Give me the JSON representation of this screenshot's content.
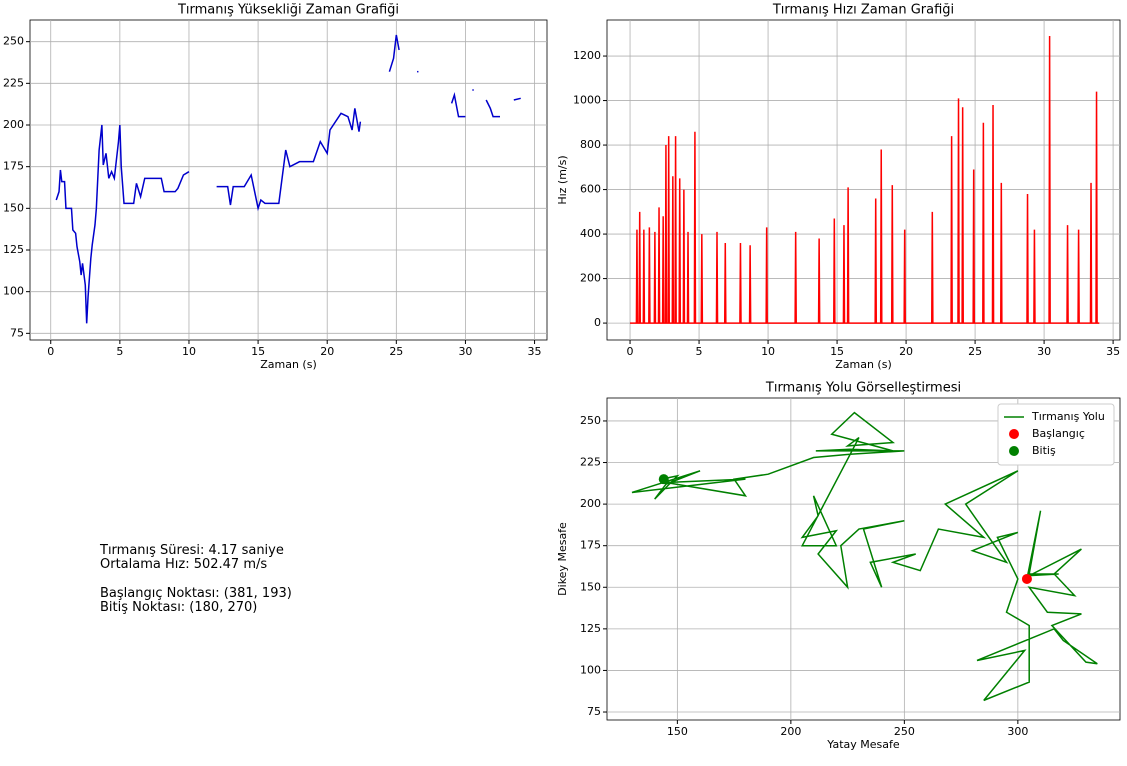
{
  "chart_data": [
    {
      "type": "line",
      "title": "Tırmanış Yüksekliği Zaman Grafiği",
      "x_label": "Zaman (s)",
      "color": "#0000cc",
      "grid": true,
      "xlim": [
        -1.5,
        35.9
      ],
      "ylim": [
        71,
        263
      ],
      "xticks": [
        0,
        5,
        10,
        15,
        20,
        25,
        30,
        35
      ],
      "yticks": [
        75,
        100,
        125,
        150,
        175,
        200,
        225,
        250
      ],
      "x": [
        0.4,
        0.6,
        0.7,
        0.8,
        1.0,
        1.1,
        1.5,
        1.6,
        1.8,
        1.9,
        2.1,
        2.2,
        2.3,
        2.5,
        2.6,
        2.7,
        2.9,
        3.0,
        3.2,
        3.3,
        3.5,
        3.7,
        3.8,
        4.0,
        4.2,
        4.4,
        4.6,
        4.9,
        5.0,
        5.1,
        5.3,
        6.0,
        6.2,
        6.5,
        6.8,
        8.0,
        8.2,
        9.0,
        9.2,
        9.6,
        10.0,
        11.0,
        12.0,
        12.8,
        13.0,
        13.2,
        14.0,
        14.5,
        15.0,
        15.2,
        15.5,
        16.5,
        17.0,
        17.3,
        18.0,
        19.0,
        19.5,
        20.0,
        20.2,
        21.0,
        21.5,
        21.8,
        22.0,
        22.3,
        22.4,
        23.5,
        24.5,
        24.8,
        25.0,
        25.2,
        25.9,
        26.5,
        26.6,
        27.8,
        29.0,
        29.2,
        29.5,
        30.0,
        30.2,
        30.5,
        30.6,
        31.0,
        31.5,
        31.8,
        32.0,
        32.5,
        33.0,
        33.5,
        34.0
      ],
      "values": [
        155,
        160,
        173,
        166,
        166,
        150,
        150,
        137,
        135,
        127,
        118,
        110,
        117,
        104,
        81,
        97,
        120,
        128,
        140,
        150,
        185,
        200,
        176,
        183,
        168,
        172,
        168,
        190,
        200,
        175,
        153,
        153,
        165,
        157,
        168,
        168,
        160,
        160,
        162,
        170,
        172,
        null,
        163,
        163,
        152,
        163,
        163,
        170,
        150,
        155,
        153,
        153,
        185,
        175,
        178,
        178,
        190,
        183,
        197,
        207,
        205,
        197,
        210,
        196,
        202,
        null,
        232,
        240,
        254,
        245,
        null,
        232,
        232,
        null,
        213,
        218,
        205,
        205,
        null,
        221,
        221,
        null,
        215,
        210,
        205,
        205,
        null,
        215,
        216
      ]
    },
    {
      "type": "line",
      "title": "Tırmanış Hızı Zaman Grafiği",
      "x_label": "Zaman (s)",
      "y_label": "Hız (m/s)",
      "color": "#ff0000",
      "grid": true,
      "xlim": [
        -1.67,
        35.5
      ],
      "ylim": [
        -76,
        1362
      ],
      "xticks": [
        0,
        5,
        10,
        15,
        20,
        25,
        30,
        35
      ],
      "yticks": [
        0,
        200,
        400,
        600,
        800,
        1000,
        1200
      ],
      "x": [
        0,
        0.46,
        0.5,
        0.54,
        0.66,
        0.7,
        0.74,
        0.96,
        1.0,
        1.04,
        1.36,
        1.4,
        1.44,
        1.76,
        1.8,
        1.84,
        2.06,
        2.1,
        2.14,
        2.36,
        2.4,
        2.44,
        2.56,
        2.6,
        2.64,
        2.76,
        2.8,
        2.84,
        3.06,
        3.1,
        3.14,
        3.26,
        3.3,
        3.34,
        3.56,
        3.6,
        3.64,
        3.86,
        3.9,
        3.94,
        4.16,
        4.2,
        4.24,
        4.66,
        4.7,
        4.74,
        5.16,
        5.2,
        5.24,
        6.26,
        6.3,
        6.34,
        6.86,
        6.9,
        6.94,
        7.96,
        8.0,
        8.04,
        8.66,
        8.7,
        8.74,
        9.86,
        9.9,
        9.94,
        11.96,
        12.0,
        12.04,
        13.66,
        13.7,
        13.74,
        14.76,
        14.8,
        14.84,
        15.46,
        15.5,
        15.54,
        15.76,
        15.8,
        15.84,
        17.76,
        17.8,
        17.84,
        18.16,
        18.2,
        18.24,
        18.96,
        19.0,
        19.04,
        19.86,
        19.9,
        19.94,
        21.86,
        21.9,
        21.94,
        23.26,
        23.3,
        23.34,
        23.76,
        23.8,
        23.84,
        24.06,
        24.1,
        24.14,
        24.86,
        24.9,
        24.94,
        25.56,
        25.6,
        25.64,
        26.26,
        26.3,
        26.34,
        26.86,
        26.9,
        26.94,
        28.76,
        28.8,
        28.84,
        29.26,
        29.3,
        29.34,
        30.36,
        30.4,
        30.44,
        31.66,
        31.7,
        31.74,
        32.46,
        32.5,
        32.54,
        33.36,
        33.4,
        33.44,
        33.76,
        33.8,
        33.84,
        34
      ],
      "values": [
        0,
        0,
        420,
        0,
        0,
        500,
        0,
        0,
        420,
        0,
        0,
        430,
        0,
        0,
        410,
        0,
        0,
        520,
        0,
        0,
        480,
        0,
        0,
        800,
        0,
        0,
        840,
        0,
        0,
        660,
        0,
        0,
        840,
        0,
        0,
        650,
        0,
        0,
        600,
        0,
        0,
        410,
        0,
        0,
        860,
        0,
        0,
        400,
        0,
        0,
        410,
        0,
        0,
        360,
        0,
        0,
        360,
        0,
        0,
        350,
        0,
        0,
        430,
        0,
        0,
        410,
        0,
        0,
        380,
        0,
        0,
        470,
        0,
        0,
        440,
        0,
        0,
        610,
        0,
        0,
        560,
        0,
        0,
        780,
        0,
        0,
        620,
        0,
        0,
        420,
        0,
        0,
        500,
        0,
        0,
        840,
        0,
        0,
        1010,
        0,
        0,
        970,
        0,
        0,
        690,
        0,
        0,
        900,
        0,
        0,
        980,
        0,
        0,
        630,
        0,
        0,
        580,
        0,
        0,
        420,
        0,
        0,
        1290,
        0,
        0,
        440,
        0,
        0,
        420,
        0,
        0,
        630,
        0,
        0,
        1040,
        0,
        0
      ]
    },
    {
      "type": "line",
      "title": "Tırmanış Yolu Görselleştirmesi",
      "x_label": "Yatay Mesafe",
      "y_label": "Dikey Mesafe",
      "grid": true,
      "legend": "upper right",
      "xlim": [
        119,
        345
      ],
      "ylim": [
        70.2,
        263.8
      ],
      "xticks": [
        150,
        200,
        250,
        300
      ],
      "yticks": [
        75,
        100,
        125,
        150,
        175,
        200,
        225,
        250
      ],
      "series": [
        {
          "name": "Tırmanış Yolu",
          "color": "#008000",
          "type": "line",
          "x": [
            304,
            310,
            305,
            318,
            305,
            328,
            316,
            325,
            305,
            313,
            328,
            315,
            330,
            335,
            320,
            316,
            282,
            303,
            285,
            305,
            305,
            295,
            300,
            291,
            300,
            280,
            295,
            277,
            300,
            268,
            285,
            265,
            257,
            245,
            255,
            235,
            240,
            232,
            250,
            230,
            222,
            225,
            212,
            220,
            205,
            212,
            210,
            220,
            205,
            230,
            225,
            245,
            228,
            218,
            245,
            226,
            211,
            250,
            226,
            210,
            190,
            175,
            180,
            145,
            180,
            130,
            160,
            145,
            140,
            150,
            143
          ],
          "values": [
            155,
            196,
            158,
            158,
            157,
            173,
            158,
            145,
            150,
            135,
            134,
            127,
            105,
            104,
            118,
            125,
            106,
            112,
            82,
            93,
            127,
            135,
            155,
            180,
            183,
            172,
            165,
            200,
            220,
            200,
            180,
            185,
            160,
            165,
            170,
            165,
            150,
            185,
            190,
            185,
            175,
            150,
            170,
            184,
            180,
            193,
            205,
            175,
            175,
            240,
            235,
            237,
            255,
            242,
            232,
            233,
            232,
            232,
            230,
            228,
            218,
            215,
            205,
            213,
            215,
            207,
            220,
            212,
            203,
            217,
            215
          ]
        },
        {
          "name": "Başlangıç",
          "color": "#ff0000",
          "type": "scatter",
          "x": [
            304
          ],
          "values": [
            155
          ]
        },
        {
          "name": "Bitiş",
          "color": "#008000",
          "type": "scatter",
          "x": [
            144
          ],
          "values": [
            215
          ]
        }
      ]
    }
  ],
  "summary": {
    "lines": [
      "Tırmanış Süresi: 4.17 saniye",
      "Ortalama Hız: 502.47 m/s",
      "Başlangıç Noktası: (381, 193)",
      "Bitiş Noktası: (180, 270)"
    ]
  }
}
